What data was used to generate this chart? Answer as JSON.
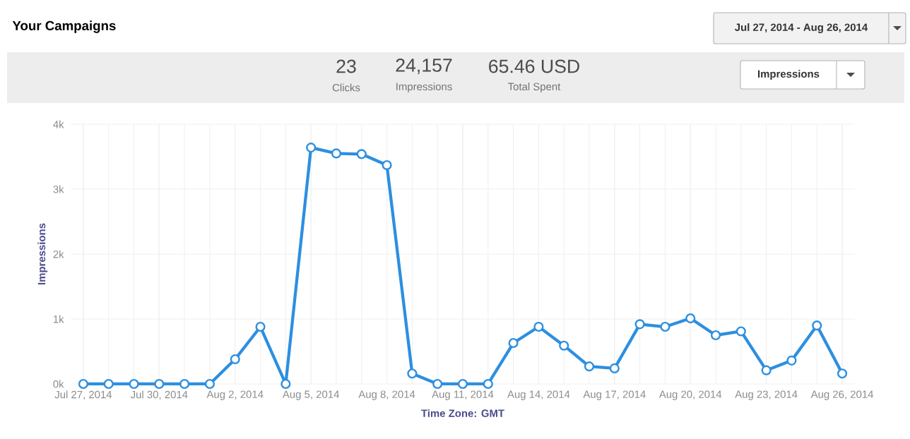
{
  "chart_data": {
    "type": "line",
    "title": "Your Campaigns",
    "xlabel": "Time Zone: GMT",
    "ylabel": "Impressions",
    "categories": [
      "Jul 27, 2014",
      null,
      null,
      "Jul 30, 2014",
      null,
      null,
      "Aug 2, 2014",
      null,
      null,
      "Aug 5, 2014",
      null,
      null,
      "Aug 8, 2014",
      null,
      null,
      "Aug 11, 2014",
      null,
      null,
      "Aug 14, 2014",
      null,
      null,
      "Aug 17, 2014",
      null,
      null,
      "Aug 20, 2014",
      null,
      null,
      "Aug 23, 2014",
      null,
      null,
      "Aug 26, 2014"
    ],
    "values": [
      0,
      0,
      0,
      0,
      0,
      0,
      380,
      880,
      0,
      3640,
      3550,
      3540,
      3370,
      160,
      0,
      0,
      0,
      630,
      880,
      590,
      270,
      240,
      920,
      880,
      1010,
      750,
      810,
      210,
      360,
      900,
      160
    ],
    "color": "#2d8fe0",
    "marker": "circle",
    "grid": true,
    "ylim": [
      0,
      4000
    ],
    "yticks": [
      {
        "value": 0,
        "label": "0k"
      },
      {
        "value": 1000,
        "label": "1k"
      },
      {
        "value": 2000,
        "label": "2k"
      },
      {
        "value": 3000,
        "label": "3k"
      },
      {
        "value": 4000,
        "label": "4k"
      }
    ],
    "annotations": [
      "Jul 27, 2014 - Aug 26, 2014",
      "23",
      "Clicks",
      "24,157",
      "Impressions",
      "65.46 USD",
      "Total Spent",
      "Impressions"
    ]
  }
}
